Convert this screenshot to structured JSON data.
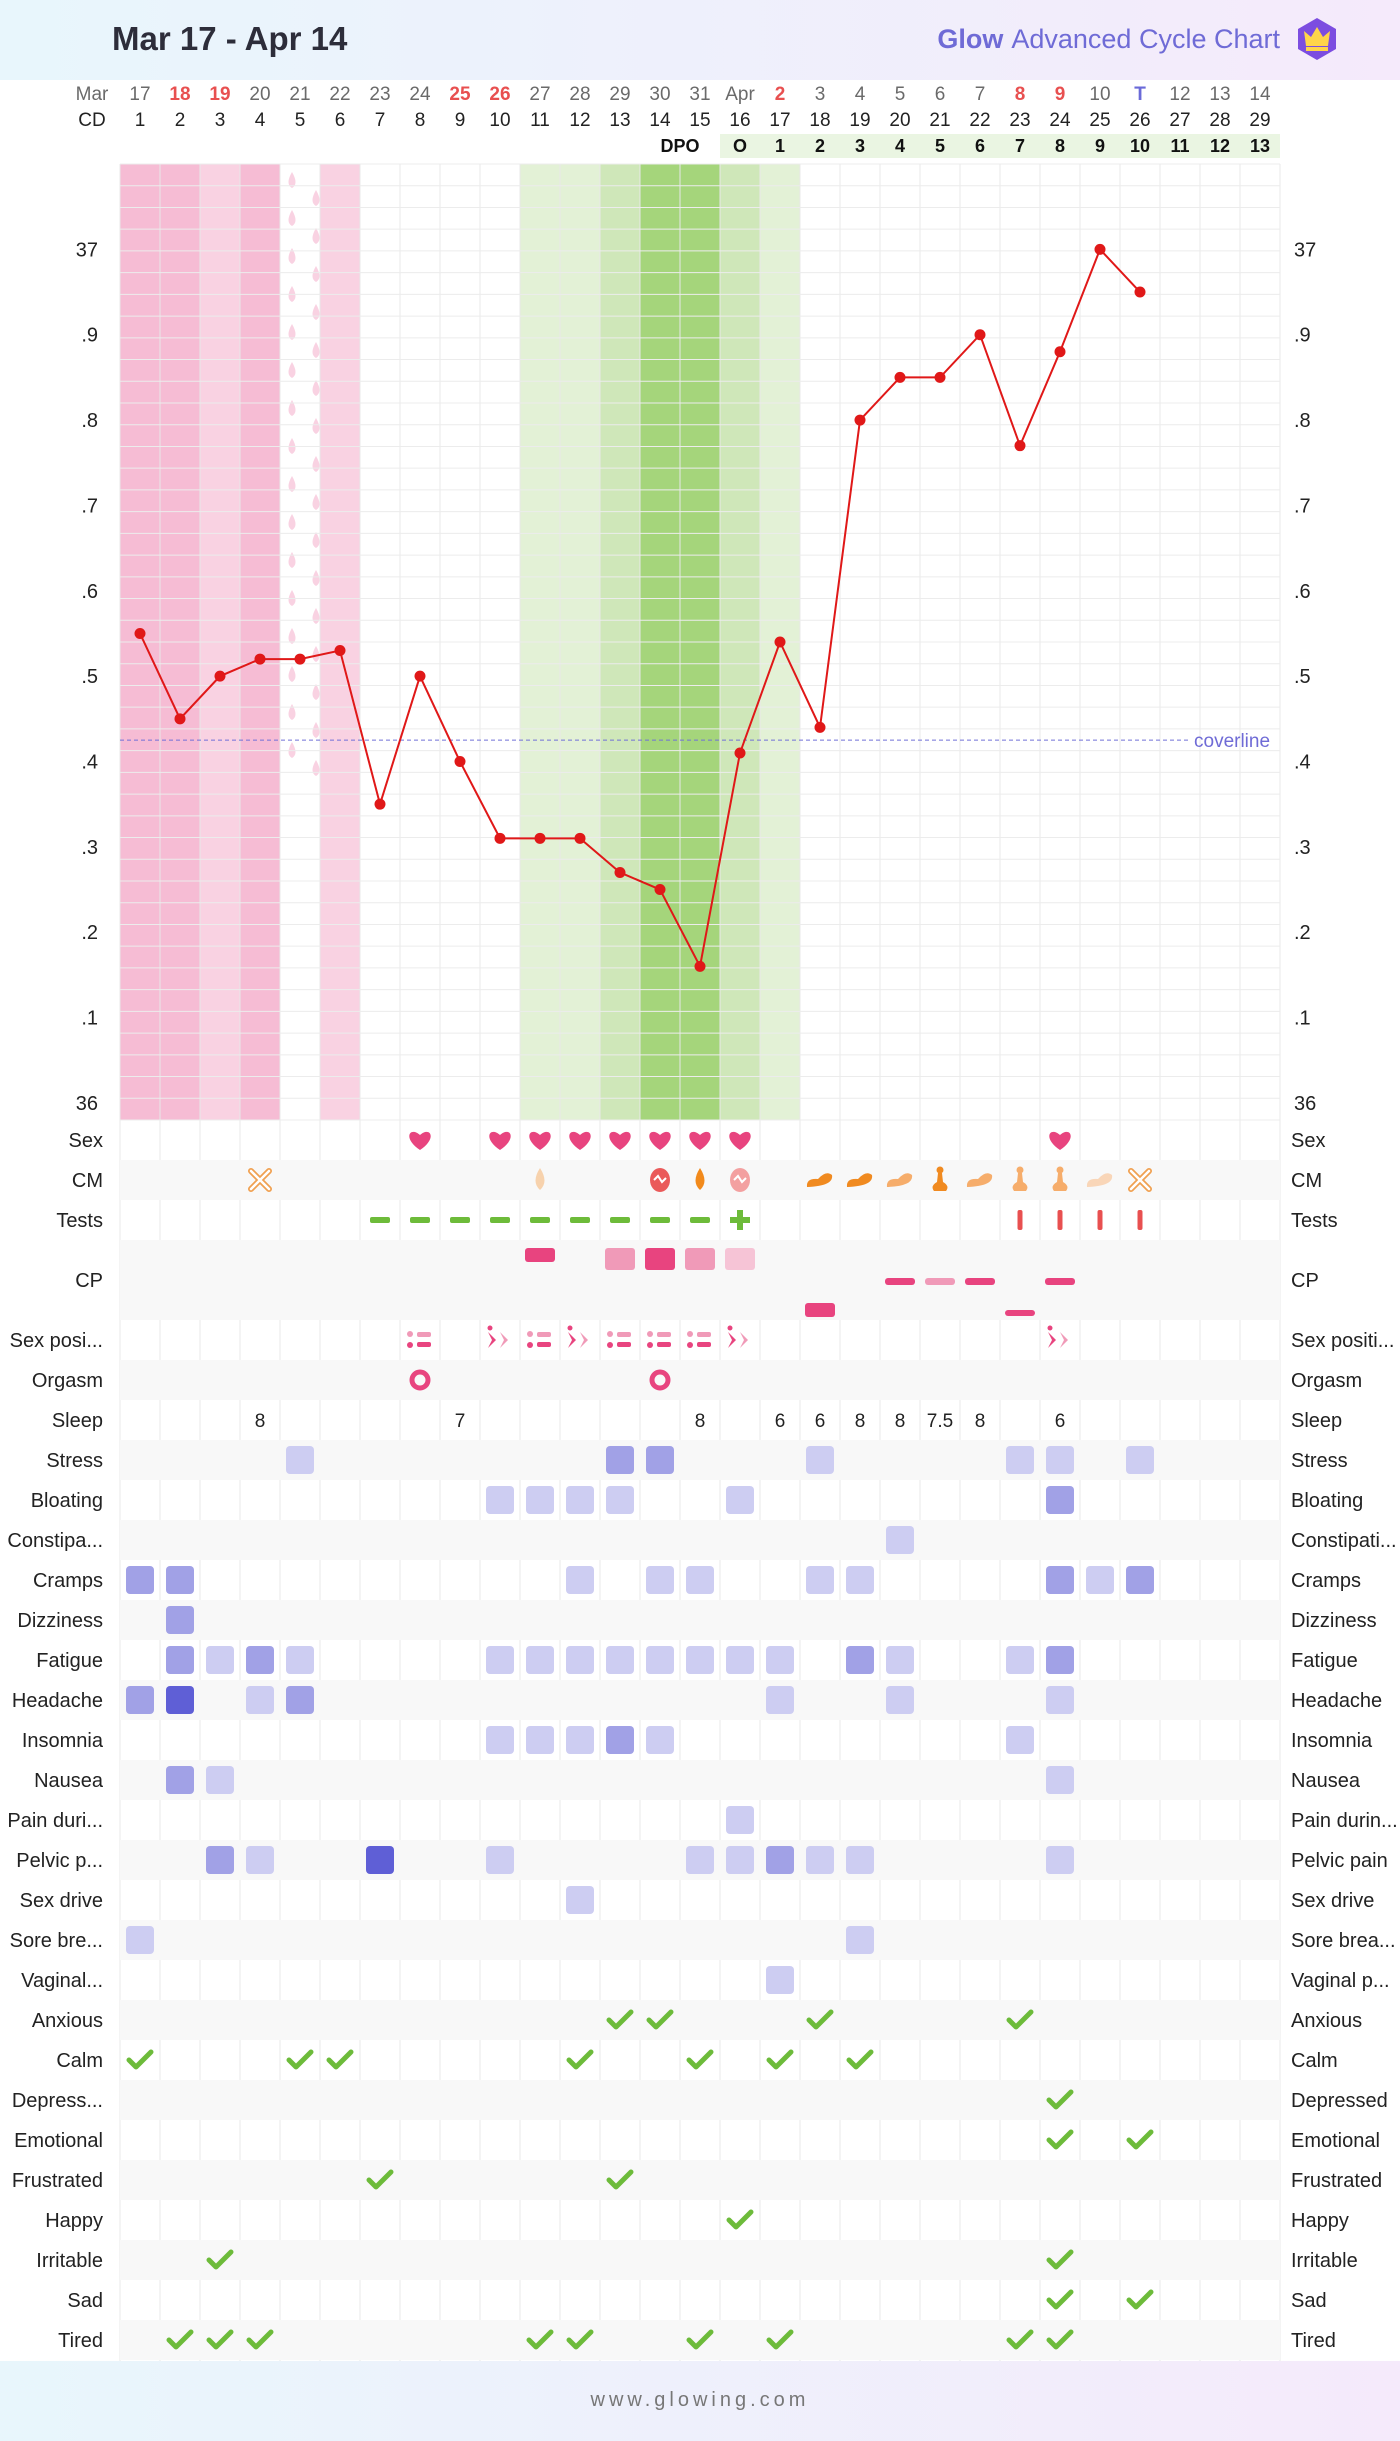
{
  "header": {
    "title": "Mar 17 - Apr 14",
    "brand_word": "Glow",
    "brand_text": "Advanced Cycle Chart",
    "crown_icon": "crown-icon"
  },
  "footer": {
    "url": "www.glowing.com"
  },
  "colors": {
    "period": "#f6bcd4",
    "period_light": "#f9d2e2",
    "fertile_light": "#e3f1d6",
    "fertile_mid": "#cfe7b9",
    "fertile_dark": "#a5d57b",
    "temp_line": "#e01818",
    "coverline": "#7070d8",
    "heart": "#e8447f",
    "check": "#6dbb3a",
    "symptom_light": "#cdcdf2",
    "symptom_mid": "#a1a1e6",
    "symptom_dark": "#5f5fd6",
    "cm_orange": "#f0a050"
  },
  "chart_data": {
    "type": "line",
    "title": "Mar 17 - Apr 14",
    "x_dates": [
      "17",
      "18",
      "19",
      "20",
      "21",
      "22",
      "23",
      "24",
      "25",
      "26",
      "27",
      "28",
      "29",
      "30",
      "31",
      "Apr",
      "2",
      "3",
      "4",
      "5",
      "6",
      "7",
      "8",
      "9",
      "10",
      "T",
      "12",
      "13",
      "14"
    ],
    "x_month_first": "Mar",
    "date_colors": [
      "n",
      "r",
      "r",
      "n",
      "n",
      "n",
      "n",
      "n",
      "r",
      "r",
      "n",
      "n",
      "n",
      "n",
      "n",
      "n",
      "r",
      "n",
      "n",
      "n",
      "n",
      "n",
      "r",
      "r",
      "n",
      "b",
      "n",
      "n",
      "n"
    ],
    "cycle_days": [
      1,
      2,
      3,
      4,
      5,
      6,
      7,
      8,
      9,
      10,
      11,
      12,
      13,
      14,
      15,
      16,
      17,
      18,
      19,
      20,
      21,
      22,
      23,
      24,
      25,
      26,
      27,
      28,
      29
    ],
    "dpo_label": "DPO",
    "dpo": [
      "",
      "",
      "",
      "",
      "",
      "",
      "",
      "",
      "",
      "",
      "",
      "",
      "",
      "",
      "",
      "O",
      "1",
      "2",
      "3",
      "4",
      "5",
      "6",
      "7",
      "8",
      "9",
      "10",
      "11",
      "12",
      "13"
    ],
    "cell_types": [
      "period",
      "period",
      "period_light",
      "period",
      "spotting",
      "period_light",
      "",
      "",
      "",
      "",
      "fertile_light",
      "fertile_light",
      "fertile_mid",
      "fertile_dark",
      "fertile_dark",
      "fertile_mid",
      "fertile_light",
      "",
      "",
      "",
      "",
      "",
      "",
      "",
      "",
      "",
      "",
      "",
      ""
    ],
    "ylabel_ticks": [
      "37",
      ".9",
      ".8",
      ".7",
      ".6",
      ".5",
      ".4",
      ".3",
      ".2",
      ".1",
      "36"
    ],
    "ylim": [
      35.98,
      37.1
    ],
    "series": [
      {
        "values": [
          36.55,
          36.45,
          36.5,
          36.52,
          36.52,
          36.53,
          36.35,
          36.5,
          36.4,
          36.31,
          36.31,
          36.31,
          36.27,
          36.25,
          36.16,
          36.41,
          36.54,
          36.44,
          36.8,
          36.85,
          36.85,
          36.9,
          36.77,
          36.88,
          37.0,
          36.95,
          null,
          null,
          null
        ]
      }
    ],
    "coverline": {
      "value": 36.425,
      "label": "coverline"
    },
    "rows": [
      {
        "label": "Sex",
        "label_right": "Sex",
        "items": [
          {
            "d": 8,
            "k": "heart"
          },
          {
            "d": 10,
            "k": "heart"
          },
          {
            "d": 11,
            "k": "heart"
          },
          {
            "d": 12,
            "k": "heart"
          },
          {
            "d": 13,
            "k": "heart"
          },
          {
            "d": 14,
            "k": "heart"
          },
          {
            "d": 15,
            "k": "heart"
          },
          {
            "d": 16,
            "k": "heart"
          },
          {
            "d": 24,
            "k": "heart"
          }
        ]
      },
      {
        "label": "CM",
        "label_right": "CM",
        "items": [
          {
            "d": 4,
            "k": "cross"
          },
          {
            "d": 11,
            "k": "drop_light"
          },
          {
            "d": 14,
            "k": "egg"
          },
          {
            "d": 15,
            "k": "drop"
          },
          {
            "d": 16,
            "k": "egg_light"
          },
          {
            "d": 18,
            "k": "blob"
          },
          {
            "d": 19,
            "k": "blob"
          },
          {
            "d": 20,
            "k": "blob_light"
          },
          {
            "d": 21,
            "k": "stretch"
          },
          {
            "d": 22,
            "k": "blob_light"
          },
          {
            "d": 23,
            "k": "stretch_light"
          },
          {
            "d": 24,
            "k": "stretch_light"
          },
          {
            "d": 25,
            "k": "blob_pale"
          },
          {
            "d": 26,
            "k": "cross"
          }
        ]
      },
      {
        "label": "Tests",
        "label_right": "Tests",
        "items": [
          {
            "d": 7,
            "k": "dash"
          },
          {
            "d": 8,
            "k": "dash"
          },
          {
            "d": 9,
            "k": "dash"
          },
          {
            "d": 10,
            "k": "dash"
          },
          {
            "d": 11,
            "k": "dash"
          },
          {
            "d": 12,
            "k": "dash"
          },
          {
            "d": 13,
            "k": "dash"
          },
          {
            "d": 14,
            "k": "dash"
          },
          {
            "d": 15,
            "k": "dash"
          },
          {
            "d": 16,
            "k": "plus"
          },
          {
            "d": 23,
            "k": "bar"
          },
          {
            "d": 24,
            "k": "bar"
          },
          {
            "d": 25,
            "k": "bar"
          },
          {
            "d": 26,
            "k": "bar"
          }
        ]
      },
      {
        "label": "CP",
        "label_right": "CP",
        "tall": true,
        "items": [
          {
            "d": 11,
            "k": "cp_high_med"
          },
          {
            "d": 13,
            "k": "cp_mid_light"
          },
          {
            "d": 14,
            "k": "cp_mid_dark"
          },
          {
            "d": 15,
            "k": "cp_mid_light"
          },
          {
            "d": 16,
            "k": "cp_mid_pale"
          },
          {
            "d": 18,
            "k": "cp_low"
          },
          {
            "d": 20,
            "k": "cp_line"
          },
          {
            "d": 21,
            "k": "cp_line_light"
          },
          {
            "d": 22,
            "k": "cp_line"
          },
          {
            "d": 23,
            "k": "cp_line_low"
          },
          {
            "d": 24,
            "k": "cp_line"
          }
        ]
      },
      {
        "label": "Sex posi...",
        "label_right": "Sex positi...",
        "items": [
          {
            "d": 8,
            "k": "pos_a"
          },
          {
            "d": 10,
            "k": "pos_b"
          },
          {
            "d": 11,
            "k": "pos_a"
          },
          {
            "d": 12,
            "k": "pos_b"
          },
          {
            "d": 13,
            "k": "pos_a"
          },
          {
            "d": 14,
            "k": "pos_a"
          },
          {
            "d": 15,
            "k": "pos_a"
          },
          {
            "d": 16,
            "k": "pos_b"
          },
          {
            "d": 24,
            "k": "pos_b"
          }
        ]
      },
      {
        "label": "Orgasm",
        "label_right": "Orgasm",
        "items": [
          {
            "d": 8,
            "k": "ring"
          },
          {
            "d": 14,
            "k": "ring"
          }
        ]
      },
      {
        "label": "Sleep",
        "label_right": "Sleep",
        "items": [
          {
            "d": 4,
            "t": "8"
          },
          {
            "d": 9,
            "t": "7"
          },
          {
            "d": 15,
            "t": "8"
          },
          {
            "d": 17,
            "t": "6"
          },
          {
            "d": 18,
            "t": "6"
          },
          {
            "d": 19,
            "t": "8"
          },
          {
            "d": 20,
            "t": "8"
          },
          {
            "d": 21,
            "t": "7.5"
          },
          {
            "d": 22,
            "t": "8"
          },
          {
            "d": 24,
            "t": "6"
          }
        ]
      },
      {
        "label": "Stress",
        "label_right": "Stress",
        "items": [
          {
            "d": 5,
            "k": "s1"
          },
          {
            "d": 13,
            "k": "s2"
          },
          {
            "d": 14,
            "k": "s2"
          },
          {
            "d": 18,
            "k": "s1"
          },
          {
            "d": 23,
            "k": "s1"
          },
          {
            "d": 24,
            "k": "s1"
          },
          {
            "d": 26,
            "k": "s1"
          }
        ]
      },
      {
        "label": "Bloating",
        "label_right": "Bloating",
        "items": [
          {
            "d": 10,
            "k": "s1"
          },
          {
            "d": 11,
            "k": "s1"
          },
          {
            "d": 12,
            "k": "s1"
          },
          {
            "d": 13,
            "k": "s1"
          },
          {
            "d": 16,
            "k": "s1"
          },
          {
            "d": 24,
            "k": "s2"
          }
        ]
      },
      {
        "label": "Constipa...",
        "label_right": "Constipati...",
        "items": [
          {
            "d": 20,
            "k": "s1"
          }
        ]
      },
      {
        "label": "Cramps",
        "label_right": "Cramps",
        "items": [
          {
            "d": 1,
            "k": "s2"
          },
          {
            "d": 2,
            "k": "s2"
          },
          {
            "d": 12,
            "k": "s1"
          },
          {
            "d": 14,
            "k": "s1"
          },
          {
            "d": 15,
            "k": "s1"
          },
          {
            "d": 18,
            "k": "s1"
          },
          {
            "d": 19,
            "k": "s1"
          },
          {
            "d": 24,
            "k": "s2"
          },
          {
            "d": 25,
            "k": "s1"
          },
          {
            "d": 26,
            "k": "s2"
          }
        ]
      },
      {
        "label": "Dizziness",
        "label_right": "Dizziness",
        "items": [
          {
            "d": 2,
            "k": "s2"
          }
        ]
      },
      {
        "label": "Fatigue",
        "label_right": "Fatigue",
        "items": [
          {
            "d": 2,
            "k": "s2"
          },
          {
            "d": 3,
            "k": "s1"
          },
          {
            "d": 4,
            "k": "s2"
          },
          {
            "d": 5,
            "k": "s1"
          },
          {
            "d": 10,
            "k": "s1"
          },
          {
            "d": 11,
            "k": "s1"
          },
          {
            "d": 12,
            "k": "s1"
          },
          {
            "d": 13,
            "k": "s1"
          },
          {
            "d": 14,
            "k": "s1"
          },
          {
            "d": 15,
            "k": "s1"
          },
          {
            "d": 16,
            "k": "s1"
          },
          {
            "d": 17,
            "k": "s1"
          },
          {
            "d": 19,
            "k": "s2"
          },
          {
            "d": 20,
            "k": "s1"
          },
          {
            "d": 23,
            "k": "s1"
          },
          {
            "d": 24,
            "k": "s2"
          }
        ]
      },
      {
        "label": "Headache",
        "label_right": "Headache",
        "items": [
          {
            "d": 1,
            "k": "s2"
          },
          {
            "d": 2,
            "k": "s3"
          },
          {
            "d": 4,
            "k": "s1"
          },
          {
            "d": 5,
            "k": "s2"
          },
          {
            "d": 17,
            "k": "s1"
          },
          {
            "d": 20,
            "k": "s1"
          },
          {
            "d": 24,
            "k": "s1"
          }
        ]
      },
      {
        "label": "Insomnia",
        "label_right": "Insomnia",
        "items": [
          {
            "d": 10,
            "k": "s1"
          },
          {
            "d": 11,
            "k": "s1"
          },
          {
            "d": 12,
            "k": "s1"
          },
          {
            "d": 13,
            "k": "s2"
          },
          {
            "d": 14,
            "k": "s1"
          },
          {
            "d": 23,
            "k": "s1"
          }
        ]
      },
      {
        "label": "Nausea",
        "label_right": "Nausea",
        "items": [
          {
            "d": 2,
            "k": "s2"
          },
          {
            "d": 3,
            "k": "s1"
          },
          {
            "d": 24,
            "k": "s1"
          }
        ]
      },
      {
        "label": "Pain duri...",
        "label_right": "Pain durin...",
        "items": [
          {
            "d": 16,
            "k": "s1"
          }
        ]
      },
      {
        "label": "Pelvic p...",
        "label_right": "Pelvic pain",
        "items": [
          {
            "d": 3,
            "k": "s2"
          },
          {
            "d": 4,
            "k": "s1"
          },
          {
            "d": 7,
            "k": "s3"
          },
          {
            "d": 10,
            "k": "s1"
          },
          {
            "d": 15,
            "k": "s1"
          },
          {
            "d": 16,
            "k": "s1"
          },
          {
            "d": 17,
            "k": "s2"
          },
          {
            "d": 18,
            "k": "s1"
          },
          {
            "d": 19,
            "k": "s1"
          },
          {
            "d": 24,
            "k": "s1"
          }
        ]
      },
      {
        "label": "Sex drive",
        "label_right": "Sex drive",
        "items": [
          {
            "d": 12,
            "k": "s1"
          }
        ]
      },
      {
        "label": "Sore bre...",
        "label_right": "Sore brea...",
        "items": [
          {
            "d": 1,
            "k": "s1"
          },
          {
            "d": 19,
            "k": "s1"
          }
        ]
      },
      {
        "label": "Vaginal...",
        "label_right": "Vaginal p...",
        "items": [
          {
            "d": 17,
            "k": "s1"
          }
        ]
      },
      {
        "label": "Anxious",
        "label_right": "Anxious",
        "items": [
          {
            "d": 13,
            "k": "check"
          },
          {
            "d": 14,
            "k": "check"
          },
          {
            "d": 18,
            "k": "check"
          },
          {
            "d": 23,
            "k": "check"
          }
        ]
      },
      {
        "label": "Calm",
        "label_right": "Calm",
        "items": [
          {
            "d": 1,
            "k": "check"
          },
          {
            "d": 5,
            "k": "check"
          },
          {
            "d": 6,
            "k": "check"
          },
          {
            "d": 12,
            "k": "check"
          },
          {
            "d": 15,
            "k": "check"
          },
          {
            "d": 17,
            "k": "check"
          },
          {
            "d": 19,
            "k": "check"
          }
        ]
      },
      {
        "label": "Depress...",
        "label_right": "Depressed",
        "items": [
          {
            "d": 24,
            "k": "check"
          }
        ]
      },
      {
        "label": "Emotional",
        "label_right": "Emotional",
        "items": [
          {
            "d": 24,
            "k": "check"
          },
          {
            "d": 26,
            "k": "check"
          }
        ]
      },
      {
        "label": "Frustrated",
        "label_right": "Frustrated",
        "items": [
          {
            "d": 7,
            "k": "check"
          },
          {
            "d": 13,
            "k": "check"
          }
        ]
      },
      {
        "label": "Happy",
        "label_right": "Happy",
        "items": [
          {
            "d": 16,
            "k": "check"
          }
        ]
      },
      {
        "label": "Irritable",
        "label_right": "Irritable",
        "items": [
          {
            "d": 3,
            "k": "check"
          },
          {
            "d": 24,
            "k": "check"
          }
        ]
      },
      {
        "label": "Sad",
        "label_right": "Sad",
        "items": [
          {
            "d": 24,
            "k": "check"
          },
          {
            "d": 26,
            "k": "check"
          }
        ]
      },
      {
        "label": "Tired",
        "label_right": "Tired",
        "items": [
          {
            "d": 2,
            "k": "check"
          },
          {
            "d": 3,
            "k": "check"
          },
          {
            "d": 4,
            "k": "check"
          },
          {
            "d": 11,
            "k": "check"
          },
          {
            "d": 12,
            "k": "check"
          },
          {
            "d": 15,
            "k": "check"
          },
          {
            "d": 17,
            "k": "check"
          },
          {
            "d": 23,
            "k": "check"
          },
          {
            "d": 24,
            "k": "check"
          }
        ]
      }
    ]
  }
}
